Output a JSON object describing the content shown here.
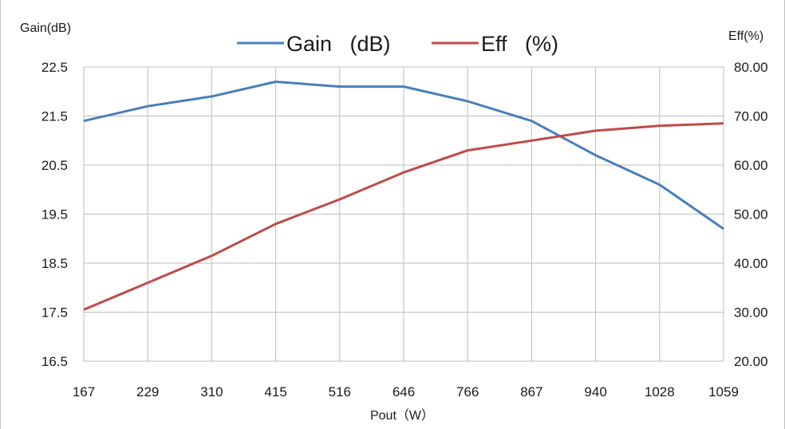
{
  "chart_data": {
    "type": "line",
    "xlabel": "Pout（W）",
    "ylabel_left": "Gain(dB)",
    "ylabel_right": "Eff(%)",
    "categories": [
      "167",
      "229",
      "310",
      "415",
      "516",
      "646",
      "766",
      "867",
      "940",
      "1028",
      "1059"
    ],
    "y_left": {
      "ylim": [
        16.5,
        22.5
      ],
      "ticks": [
        "16.5",
        "17.5",
        "18.5",
        "19.5",
        "20.5",
        "21.5",
        "22.5"
      ]
    },
    "y_right": {
      "ylim": [
        20,
        80
      ],
      "ticks": [
        "20.00",
        "30.00",
        "40.00",
        "50.00",
        "60.00",
        "70.00",
        "80.00"
      ]
    },
    "grid": true,
    "legend_position": "top-center",
    "series": [
      {
        "name": "Gain   (dB)",
        "axis": "left",
        "color": "#4a7ebb",
        "values": [
          21.4,
          21.7,
          21.9,
          22.2,
          22.1,
          22.1,
          21.8,
          21.4,
          20.7,
          20.1,
          19.2
        ]
      },
      {
        "name": "Eff   (%)",
        "axis": "right",
        "color": "#be4b48",
        "values": [
          30.5,
          36,
          41.5,
          48,
          53,
          58.5,
          63,
          65,
          67,
          68,
          68.5
        ]
      }
    ]
  }
}
